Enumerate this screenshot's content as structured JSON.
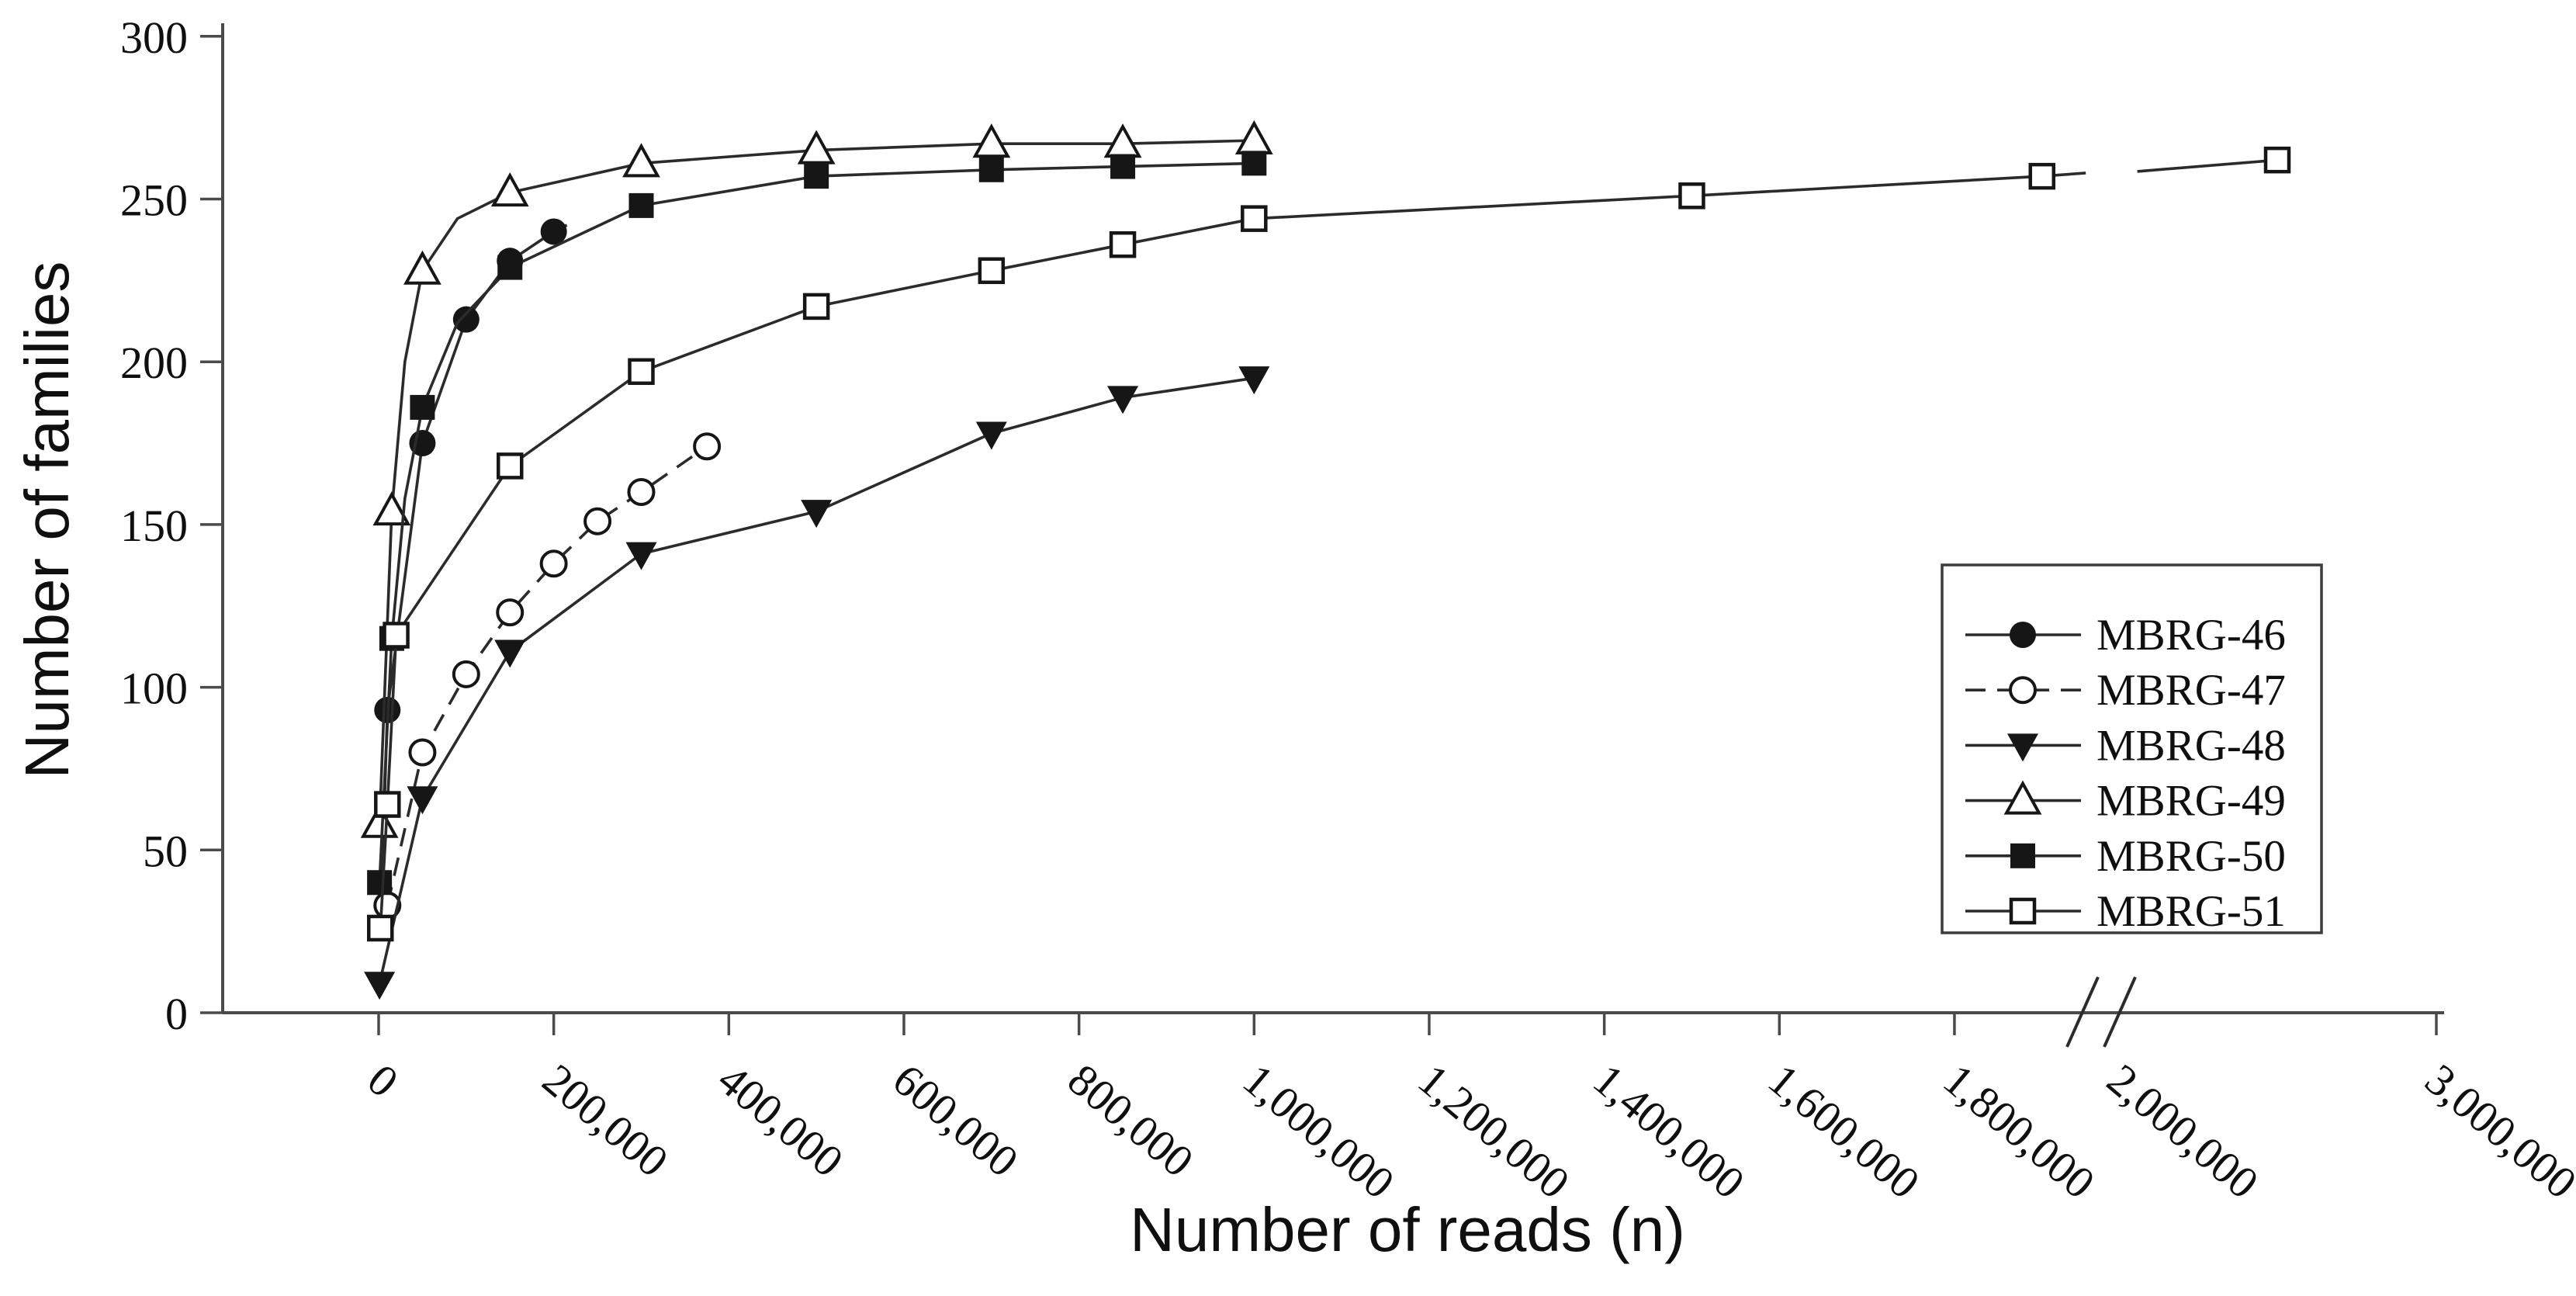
{
  "colors": {
    "background": "#ffffff",
    "line": "#2b2b2b",
    "marker_fill": "#161616",
    "marker_open_fill": "#ffffff",
    "axis": "#4a4a4a",
    "text": "#0f0f0f",
    "legend_border": "#3c3c3c"
  },
  "chart_data": {
    "type": "line",
    "title": "",
    "xlabel": "Number of reads (n)",
    "ylabel": "Number of families",
    "grid": false,
    "x_axis": {
      "scale": "linear-with-break",
      "break_between": [
        1950000,
        2000000
      ],
      "ticks": [
        {
          "label": "0",
          "reads": 0,
          "tick": true
        },
        {
          "label": "200,000",
          "reads": 200000,
          "tick": true
        },
        {
          "label": "400,000",
          "reads": 400000,
          "tick": true
        },
        {
          "label": "600,000",
          "reads": 600000,
          "tick": true
        },
        {
          "label": "800,000",
          "reads": 800000,
          "tick": true
        },
        {
          "label": "1,000,000",
          "reads": 1000000,
          "tick": true
        },
        {
          "label": "1,200,000",
          "reads": 1200000,
          "tick": true
        },
        {
          "label": "1,400,000",
          "reads": 1400000,
          "tick": true
        },
        {
          "label": "1,600,000",
          "reads": 1600000,
          "tick": true
        },
        {
          "label": "1,800,000",
          "reads": 1800000,
          "tick": true
        },
        {
          "label": "2,000,000",
          "reads": 2000000,
          "tick": false
        },
        {
          "label": "3,000,000",
          "reads": 3000000,
          "tick": true
        }
      ]
    },
    "y_axis": {
      "min": 0,
      "max": 300,
      "tick_step": 50,
      "tick_labels": [
        "0",
        "50",
        "100",
        "150",
        "200",
        "250",
        "300"
      ]
    },
    "legend": {
      "position": "right-middle",
      "entries": [
        {
          "label": "MBRG-46",
          "marker": "filled-circle",
          "line": "solid"
        },
        {
          "label": "MBRG-47",
          "marker": "open-circle",
          "line": "dashed"
        },
        {
          "label": "MBRG-48",
          "marker": "filled-tri-down",
          "line": "solid"
        },
        {
          "label": "MBRG-49",
          "marker": "open-tri-up",
          "line": "solid"
        },
        {
          "label": "MBRG-50",
          "marker": "filled-square",
          "line": "solid"
        },
        {
          "label": "MBRG-51",
          "marker": "open-square",
          "line": "solid"
        }
      ]
    },
    "series": [
      {
        "name": "MBRG-46",
        "marker": "filled-circle",
        "line": "solid",
        "points": [
          [
            2000,
            25,
            0
          ],
          [
            10000,
            93,
            1
          ],
          [
            50000,
            175,
            1
          ],
          [
            100000,
            213,
            1
          ],
          [
            150000,
            231,
            1
          ],
          [
            200000,
            240,
            1
          ],
          [
            215000,
            242,
            0
          ]
        ]
      },
      {
        "name": "MBRG-47",
        "marker": "open-circle",
        "line": "dashed",
        "points": [
          [
            10000,
            33,
            1
          ],
          [
            50000,
            80,
            1
          ],
          [
            100000,
            104,
            1
          ],
          [
            150000,
            123,
            1
          ],
          [
            200000,
            138,
            1
          ],
          [
            250000,
            151,
            1
          ],
          [
            300000,
            160,
            1
          ],
          [
            375000,
            174,
            1
          ]
        ]
      },
      {
        "name": "MBRG-48",
        "marker": "filled-tri-down",
        "line": "solid",
        "points": [
          [
            1000,
            9,
            1
          ],
          [
            50000,
            66,
            1
          ],
          [
            150000,
            111,
            1
          ],
          [
            300000,
            141,
            1
          ],
          [
            500000,
            154,
            1
          ],
          [
            700000,
            178,
            1
          ],
          [
            850000,
            189,
            1
          ],
          [
            1000000,
            195,
            1
          ]
        ]
      },
      {
        "name": "MBRG-49",
        "marker": "open-tri-up",
        "line": "solid",
        "points": [
          [
            1000,
            58,
            1
          ],
          [
            15000,
            154,
            1
          ],
          [
            30000,
            200,
            0
          ],
          [
            50000,
            228,
            1
          ],
          [
            90000,
            244,
            0
          ],
          [
            150000,
            252,
            1
          ],
          [
            300000,
            261,
            1
          ],
          [
            500000,
            265,
            1
          ],
          [
            700000,
            267,
            1
          ],
          [
            850000,
            267,
            1
          ],
          [
            1000000,
            268,
            1
          ]
        ]
      },
      {
        "name": "MBRG-50",
        "marker": "filled-square",
        "line": "solid",
        "points": [
          [
            1000,
            40,
            1
          ],
          [
            15000,
            115,
            1
          ],
          [
            30000,
            158,
            0
          ],
          [
            50000,
            186,
            1
          ],
          [
            90000,
            212,
            0
          ],
          [
            150000,
            229,
            1
          ],
          [
            300000,
            248,
            1
          ],
          [
            500000,
            257,
            1
          ],
          [
            700000,
            259,
            1
          ],
          [
            850000,
            260,
            1
          ],
          [
            1000000,
            261,
            1
          ]
        ]
      },
      {
        "name": "MBRG-51",
        "marker": "open-square",
        "line": "solid",
        "points": [
          [
            2000,
            26,
            1
          ],
          [
            10000,
            64,
            1
          ],
          [
            20000,
            116,
            1
          ],
          [
            150000,
            168,
            1
          ],
          [
            300000,
            197,
            1
          ],
          [
            500000,
            217,
            1
          ],
          [
            700000,
            228,
            1
          ],
          [
            850000,
            236,
            1
          ],
          [
            1000000,
            244,
            1
          ],
          [
            1500000,
            251,
            1
          ],
          [
            1900000,
            257,
            1
          ],
          [
            1950000,
            258,
            0
          ],
          [
            2060000,
            258.5,
            0
          ],
          [
            2500000,
            262,
            1
          ]
        ]
      }
    ]
  }
}
